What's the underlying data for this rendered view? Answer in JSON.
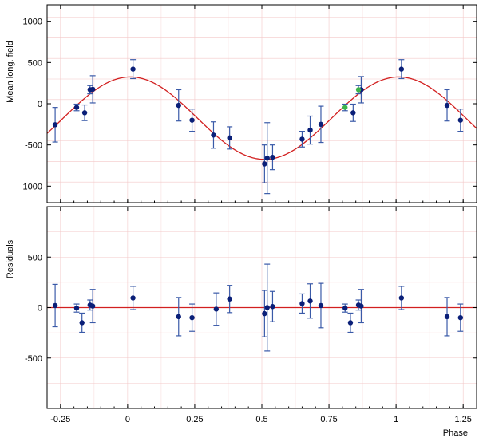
{
  "chart_data": [
    {
      "type": "scatter",
      "panel": "top",
      "ylabel": "Mean long. field",
      "xlabel": "",
      "xlim": [
        -0.3,
        1.3
      ],
      "ylim": [
        -1200,
        1200
      ],
      "xticks": [
        -0.25,
        0,
        0.25,
        0.5,
        0.75,
        1,
        1.25
      ],
      "xtick_labels": [
        "-0.25",
        "0",
        "0.25",
        "0.5",
        "0.75",
        "1",
        "1.25"
      ],
      "yticks": [
        -1000,
        -500,
        0,
        500,
        1000
      ],
      "ytick_labels": [
        "-1000",
        "-500",
        "0",
        "500",
        "1000"
      ],
      "grid": true,
      "model_curve": {
        "mean": -175,
        "amplitude": 500,
        "phase_of_max": 0.01,
        "color": "#d22020"
      },
      "series": [
        {
          "marker_color": "#0a1f78",
          "points": [
            {
              "x": -0.27,
              "y": -255,
              "err": 210
            },
            {
              "x": -0.19,
              "y": -45,
              "err": 40
            },
            {
              "x": -0.16,
              "y": -110,
              "err": 95
            },
            {
              "x": -0.14,
              "y": 170,
              "err": 50
            },
            {
              "x": -0.13,
              "y": 175,
              "err": 165
            },
            {
              "x": 0.02,
              "y": 420,
              "err": 115
            },
            {
              "x": 0.19,
              "y": -20,
              "err": 190
            },
            {
              "x": 0.24,
              "y": -200,
              "err": 135
            },
            {
              "x": 0.32,
              "y": -380,
              "err": 160
            },
            {
              "x": 0.38,
              "y": -415,
              "err": 135
            },
            {
              "x": 0.51,
              "y": -730,
              "err": 230
            },
            {
              "x": 0.52,
              "y": -660,
              "err": 430
            },
            {
              "x": 0.54,
              "y": -650,
              "err": 150
            },
            {
              "x": 0.65,
              "y": -430,
              "err": 95
            },
            {
              "x": 0.68,
              "y": -320,
              "err": 170
            },
            {
              "x": 0.72,
              "y": -250,
              "err": 220
            },
            {
              "x": 0.84,
              "y": -110,
              "err": 105
            },
            {
              "x": 0.87,
              "y": 170,
              "err": 160
            },
            {
              "x": 1.02,
              "y": 420,
              "err": 115
            },
            {
              "x": 1.19,
              "y": -20,
              "err": 190
            },
            {
              "x": 1.24,
              "y": -200,
              "err": 135
            }
          ]
        },
        {
          "marker_color": "#3cb44b",
          "points": [
            {
              "x": 0.81,
              "y": -45,
              "err": 40
            },
            {
              "x": 0.86,
              "y": 170,
              "err": 50
            }
          ]
        }
      ]
    },
    {
      "type": "scatter",
      "panel": "bottom",
      "ylabel": "Residuals",
      "xlabel": "Phase",
      "xlim": [
        -0.3,
        1.3
      ],
      "ylim": [
        -1000,
        1000
      ],
      "xticks": [
        -0.25,
        0,
        0.25,
        0.5,
        0.75,
        1,
        1.25
      ],
      "xtick_labels": [
        "-0.25",
        "0",
        "0.25",
        "0.5",
        "0.75",
        "1",
        "1.25"
      ],
      "yticks": [
        -500,
        0,
        500
      ],
      "ytick_labels": [
        "-500",
        "0",
        "500"
      ],
      "grid": true,
      "zero_line_color": "#d22020",
      "series": [
        {
          "marker_color": "#0a1f78",
          "points": [
            {
              "x": -0.27,
              "y": 20,
              "err": 210
            },
            {
              "x": -0.19,
              "y": -5,
              "err": 40
            },
            {
              "x": -0.17,
              "y": -150,
              "err": 95
            },
            {
              "x": -0.14,
              "y": 25,
              "err": 50
            },
            {
              "x": -0.13,
              "y": 15,
              "err": 165
            },
            {
              "x": 0.02,
              "y": 95,
              "err": 115
            },
            {
              "x": 0.19,
              "y": -90,
              "err": 190
            },
            {
              "x": 0.24,
              "y": -100,
              "err": 135
            },
            {
              "x": 0.33,
              "y": -15,
              "err": 160
            },
            {
              "x": 0.38,
              "y": 85,
              "err": 135
            },
            {
              "x": 0.51,
              "y": -60,
              "err": 230
            },
            {
              "x": 0.52,
              "y": 0,
              "err": 430
            },
            {
              "x": 0.54,
              "y": 10,
              "err": 150
            },
            {
              "x": 0.65,
              "y": 40,
              "err": 95
            },
            {
              "x": 0.68,
              "y": 65,
              "err": 170
            },
            {
              "x": 0.72,
              "y": 20,
              "err": 220
            },
            {
              "x": 0.81,
              "y": -5,
              "err": 40
            },
            {
              "x": 0.83,
              "y": -150,
              "err": 95
            },
            {
              "x": 0.86,
              "y": 25,
              "err": 50
            },
            {
              "x": 0.87,
              "y": 15,
              "err": 165
            },
            {
              "x": 1.02,
              "y": 95,
              "err": 115
            },
            {
              "x": 1.19,
              "y": -90,
              "err": 190
            },
            {
              "x": 1.24,
              "y": -100,
              "err": 135
            }
          ]
        }
      ]
    }
  ]
}
